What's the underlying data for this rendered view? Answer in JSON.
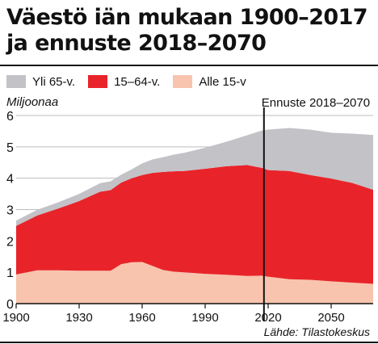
{
  "chart_data": {
    "type": "area",
    "title": "Väestö iän mukaan 1900–2017 ja ennuste 2018–2070",
    "ylabel": "Miljoonaa",
    "xlim": [
      1900,
      2070
    ],
    "ylim": [
      0,
      6
    ],
    "x_ticks": [
      "1900",
      "1930",
      "1960",
      "1990",
      "2020",
      "2050"
    ],
    "y_ticks": [
      "0",
      "1",
      "2",
      "3",
      "4",
      "5",
      "6"
    ],
    "forecast_start": 2018,
    "forecast_label": "Ennuste 2018–2070",
    "x": [
      1900,
      1910,
      1920,
      1930,
      1940,
      1945,
      1950,
      1955,
      1960,
      1965,
      1970,
      1975,
      1980,
      1990,
      2000,
      2010,
      2017,
      2020,
      2030,
      2040,
      2050,
      2060,
      2070
    ],
    "series": [
      {
        "name": "Alle 15-v",
        "color": "#f8c4ad",
        "values": [
          0.93,
          1.06,
          1.06,
          1.05,
          1.05,
          1.05,
          1.26,
          1.32,
          1.33,
          1.2,
          1.07,
          1.02,
          1.0,
          0.95,
          0.92,
          0.88,
          0.89,
          0.86,
          0.78,
          0.76,
          0.71,
          0.67,
          0.63
        ]
      },
      {
        "name": "15–64-v.",
        "color": "#e8242a",
        "values": [
          1.55,
          1.75,
          1.97,
          2.22,
          2.52,
          2.57,
          2.6,
          2.68,
          2.77,
          2.97,
          3.13,
          3.2,
          3.23,
          3.35,
          3.46,
          3.54,
          3.44,
          3.4,
          3.45,
          3.34,
          3.28,
          3.18,
          3.0
        ]
      },
      {
        "name": "Yli 65-v.",
        "color": "#c2c2c7",
        "values": [
          0.17,
          0.18,
          0.2,
          0.23,
          0.27,
          0.28,
          0.25,
          0.28,
          0.37,
          0.43,
          0.47,
          0.53,
          0.58,
          0.67,
          0.78,
          0.95,
          1.19,
          1.29,
          1.37,
          1.45,
          1.46,
          1.57,
          1.75
        ]
      }
    ],
    "legend_position": "top"
  },
  "source": "Lähde: Tilastokeskus"
}
